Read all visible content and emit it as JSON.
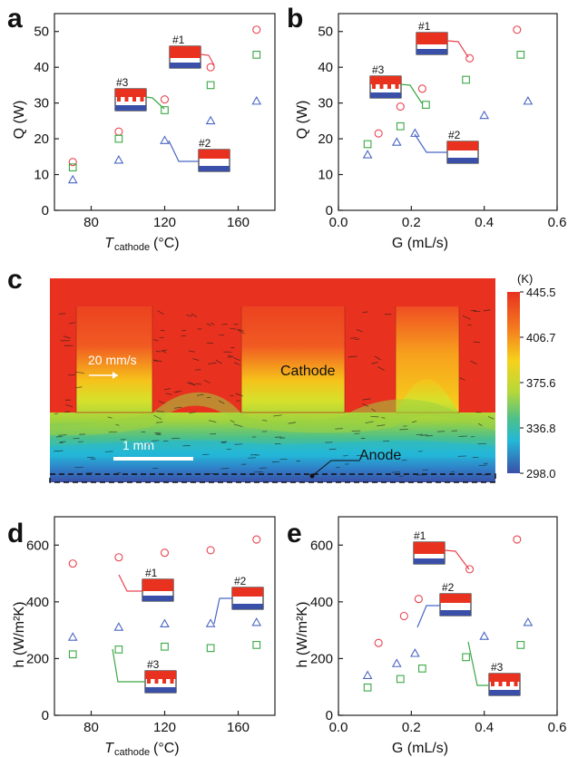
{
  "panels": {
    "a": "a",
    "b": "b",
    "c": "c",
    "d": "d",
    "e": "e"
  },
  "labels": {
    "q_y": "Q (W)",
    "h_y": "h (W/m²K)",
    "g_x": "G (mL/s)",
    "t_x_main": "T",
    "t_x_sub": "cathode",
    "t_x_unit": "(°C)"
  },
  "structures": {
    "s1": "#1",
    "s2": "#2",
    "s3": "#3"
  },
  "simulation": {
    "velocity_scale": "20 mm/s",
    "length_scale": "1 mm",
    "cathode_label": "Cathode",
    "anode_label": "Anode",
    "colorbar_unit": "(K)",
    "colorbar_ticks": [
      "445.5",
      "406.7",
      "375.6",
      "336.8",
      "298.0"
    ],
    "colors": {
      "hot": "#e8321f",
      "warm": "#f6c21b",
      "mid": "#9fd23f",
      "cool": "#23b8d8",
      "cold": "#3a4fa8"
    }
  },
  "series_colors": {
    "s1": "#e8434f",
    "s2": "#4966c4",
    "s3": "#3aa845"
  },
  "chart_data": [
    {
      "panel": "a",
      "type": "scatter",
      "xlabel": "T_cathode (°C)",
      "ylabel": "Q (W)",
      "xlim": [
        60,
        180
      ],
      "ylim": [
        0,
        55
      ],
      "xticks": [
        80,
        120,
        160
      ],
      "yticks": [
        0,
        10,
        20,
        30,
        40,
        50
      ],
      "series": [
        {
          "name": "#1",
          "marker": "circle",
          "x": [
            70,
            95,
            120,
            145,
            170
          ],
          "y": [
            13.5,
            22,
            31,
            40,
            50.5
          ]
        },
        {
          "name": "#2",
          "marker": "triangle",
          "x": [
            70,
            95,
            120,
            145,
            170
          ],
          "y": [
            8.5,
            14,
            19.5,
            25,
            30.5
          ]
        },
        {
          "name": "#3",
          "marker": "square",
          "x": [
            70,
            95,
            120,
            145,
            170
          ],
          "y": [
            12,
            20,
            28,
            35,
            43.5
          ]
        }
      ]
    },
    {
      "panel": "b",
      "type": "scatter",
      "xlabel": "G (mL/s)",
      "ylabel": "Q (W)",
      "xlim": [
        0.0,
        0.6
      ],
      "ylim": [
        0,
        55
      ],
      "xticks": [
        0.0,
        0.2,
        0.4,
        0.6
      ],
      "yticks": [
        0,
        10,
        20,
        30,
        40,
        50
      ],
      "series": [
        {
          "name": "#1",
          "marker": "circle",
          "x": [
            0.11,
            0.17,
            0.23,
            0.36,
            0.49
          ],
          "y": [
            21.5,
            29,
            34,
            42.5,
            50.5
          ]
        },
        {
          "name": "#2",
          "marker": "triangle",
          "x": [
            0.08,
            0.16,
            0.21,
            0.4,
            0.52
          ],
          "y": [
            15.5,
            19,
            21.5,
            26.5,
            30.5
          ]
        },
        {
          "name": "#3",
          "marker": "square",
          "x": [
            0.08,
            0.17,
            0.24,
            0.35,
            0.5
          ],
          "y": [
            18.5,
            23.5,
            29.5,
            36.5,
            43.5
          ]
        }
      ]
    },
    {
      "panel": "d",
      "type": "scatter",
      "xlabel": "T_cathode (°C)",
      "ylabel": "h (W/m²K)",
      "xlim": [
        60,
        180
      ],
      "ylim": [
        0,
        700
      ],
      "xticks": [
        80,
        120,
        160
      ],
      "yticks": [
        0,
        200,
        400,
        600
      ],
      "series": [
        {
          "name": "#1",
          "marker": "circle",
          "x": [
            70,
            95,
            120,
            145,
            170
          ],
          "y": [
            535,
            557,
            573,
            582,
            620
          ]
        },
        {
          "name": "#2",
          "marker": "triangle",
          "x": [
            70,
            95,
            120,
            145,
            170
          ],
          "y": [
            275,
            310,
            322,
            323,
            327
          ]
        },
        {
          "name": "#3",
          "marker": "square",
          "x": [
            70,
            95,
            120,
            145,
            170
          ],
          "y": [
            215,
            232,
            242,
            237,
            248
          ]
        }
      ]
    },
    {
      "panel": "e",
      "type": "scatter",
      "xlabel": "G (mL/s)",
      "ylabel": "h (W/m²K)",
      "xlim": [
        0.0,
        0.6
      ],
      "ylim": [
        0,
        700
      ],
      "xticks": [
        0.0,
        0.2,
        0.4,
        0.6
      ],
      "yticks": [
        0,
        200,
        400,
        600
      ],
      "series": [
        {
          "name": "#1",
          "marker": "circle",
          "x": [
            0.11,
            0.18,
            0.22,
            0.36,
            0.49
          ],
          "y": [
            255,
            350,
            410,
            515,
            620
          ]
        },
        {
          "name": "#2",
          "marker": "triangle",
          "x": [
            0.08,
            0.16,
            0.21,
            0.4,
            0.52
          ],
          "y": [
            140,
            182,
            218,
            278,
            327
          ]
        },
        {
          "name": "#3",
          "marker": "square",
          "x": [
            0.08,
            0.17,
            0.23,
            0.35,
            0.5
          ],
          "y": [
            98,
            128,
            165,
            205,
            248
          ]
        }
      ]
    }
  ]
}
